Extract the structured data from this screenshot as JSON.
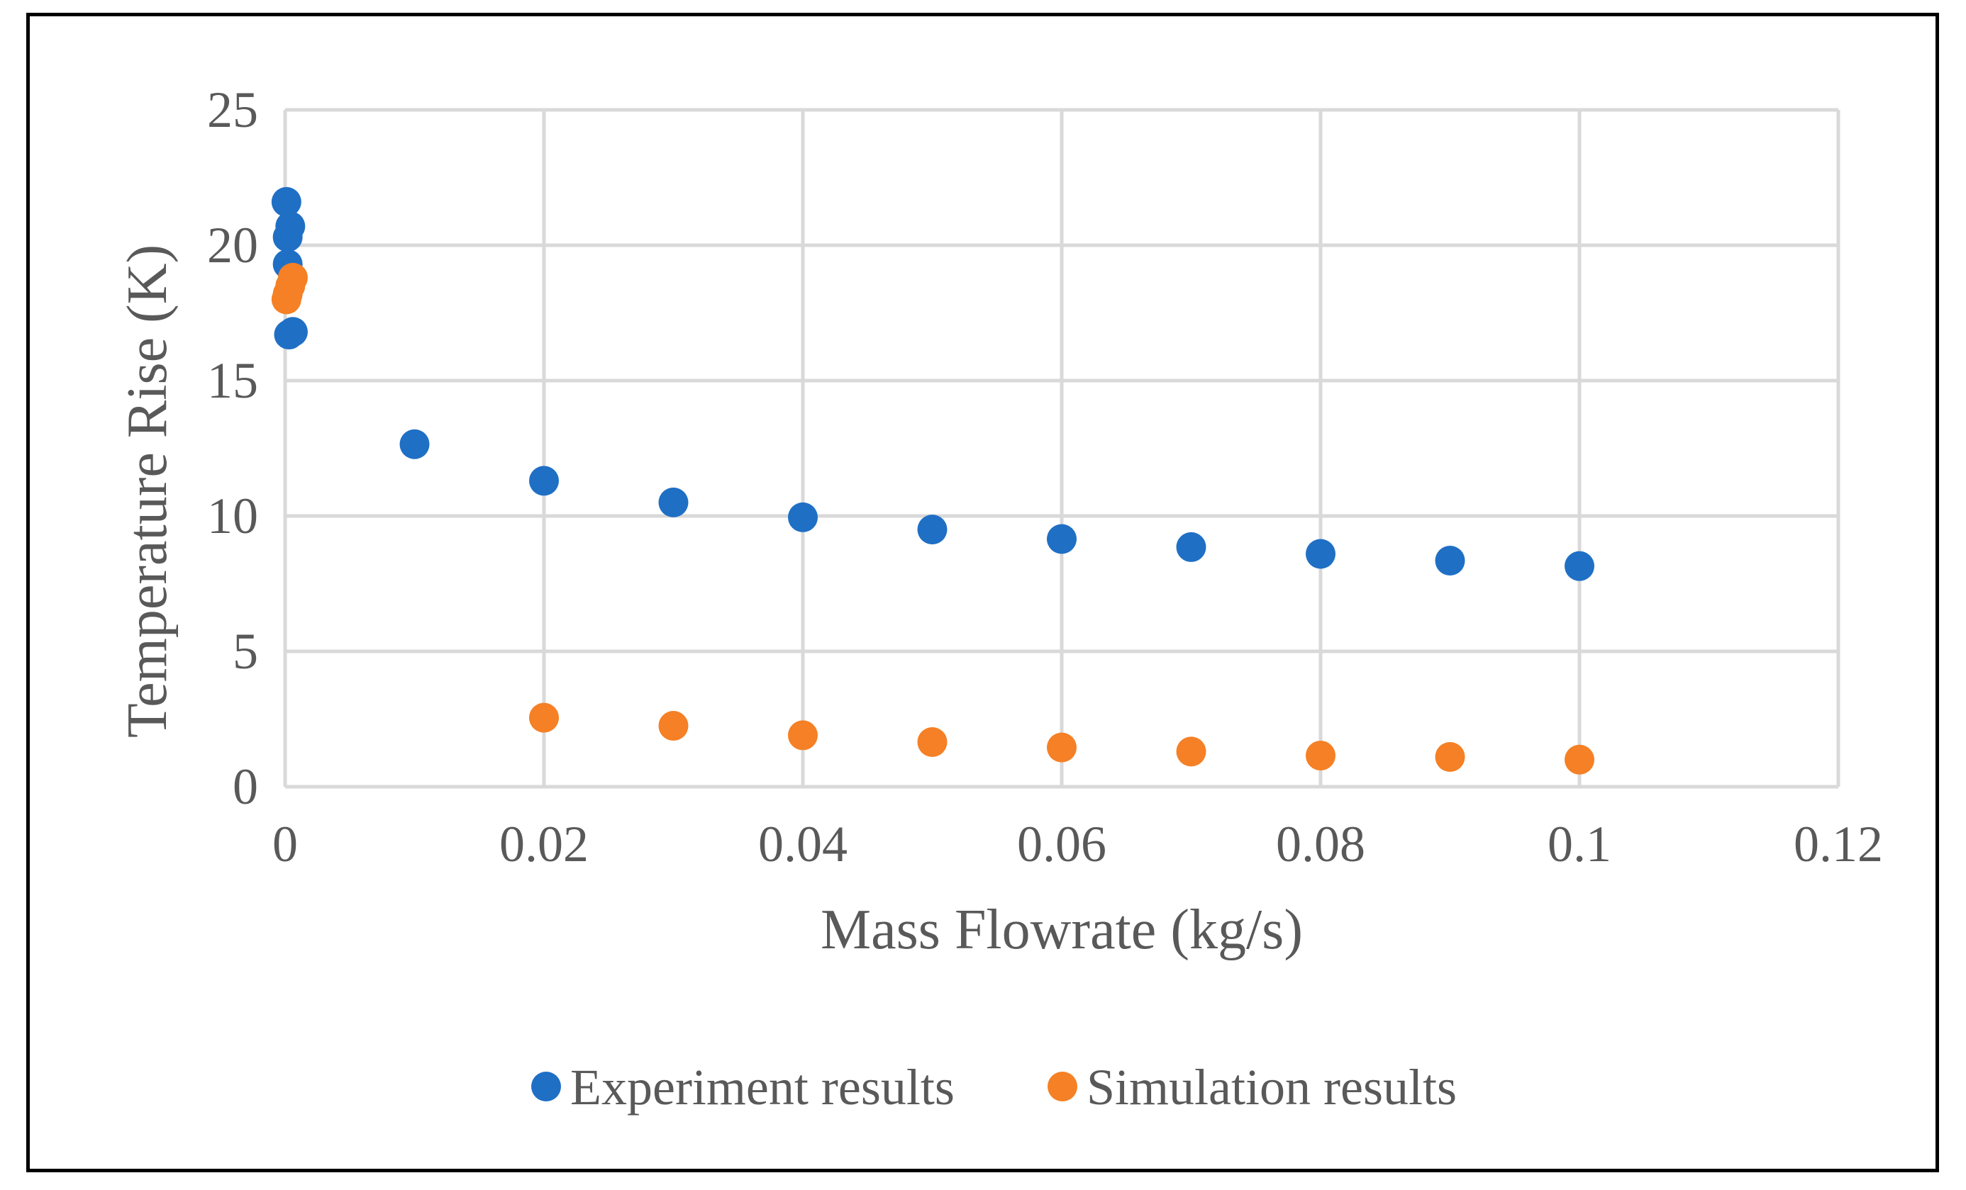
{
  "chart_data": {
    "type": "scatter",
    "title": "",
    "xlabel": "Mass Flowrate (kg/s)",
    "ylabel": "Temperature Rise (K)",
    "xlim": [
      0,
      0.12
    ],
    "ylim": [
      0,
      25
    ],
    "x_ticks": [
      0,
      0.02,
      0.04,
      0.06,
      0.08,
      0.1,
      0.12
    ],
    "x_tick_labels": [
      "0",
      "0.02",
      "0.04",
      "0.06",
      "0.08",
      "0.1",
      "0.12"
    ],
    "y_ticks": [
      0,
      5,
      10,
      15,
      20,
      25
    ],
    "y_tick_labels": [
      "0",
      "5",
      "10",
      "15",
      "20",
      "25"
    ],
    "grid": true,
    "legend_position": "bottom",
    "series": [
      {
        "name": "Experiment results",
        "color": "#1f6fc5",
        "points": [
          {
            "x": 0.0001,
            "y": 21.6
          },
          {
            "x": 0.0004,
            "y": 20.7
          },
          {
            "x": 0.0002,
            "y": 20.3
          },
          {
            "x": 0.0002,
            "y": 19.3
          },
          {
            "x": 0.0006,
            "y": 16.8
          },
          {
            "x": 0.0003,
            "y": 16.7
          },
          {
            "x": 0.01,
            "y": 12.65
          },
          {
            "x": 0.02,
            "y": 11.3
          },
          {
            "x": 0.03,
            "y": 10.5
          },
          {
            "x": 0.04,
            "y": 9.95
          },
          {
            "x": 0.05,
            "y": 9.5
          },
          {
            "x": 0.06,
            "y": 9.15
          },
          {
            "x": 0.07,
            "y": 8.85
          },
          {
            "x": 0.08,
            "y": 8.6
          },
          {
            "x": 0.09,
            "y": 8.35
          },
          {
            "x": 0.1,
            "y": 8.15
          }
        ]
      },
      {
        "name": "Simulation results",
        "color": "#f58025",
        "points": [
          {
            "x": 0.0006,
            "y": 18.8
          },
          {
            "x": 0.0004,
            "y": 18.5
          },
          {
            "x": 0.0002,
            "y": 18.2
          },
          {
            "x": 0.0001,
            "y": 18.0
          },
          {
            "x": 0.02,
            "y": 2.55
          },
          {
            "x": 0.03,
            "y": 2.25
          },
          {
            "x": 0.04,
            "y": 1.9
          },
          {
            "x": 0.05,
            "y": 1.65
          },
          {
            "x": 0.06,
            "y": 1.45
          },
          {
            "x": 0.07,
            "y": 1.3
          },
          {
            "x": 0.08,
            "y": 1.15
          },
          {
            "x": 0.09,
            "y": 1.1
          },
          {
            "x": 0.1,
            "y": 1.0
          }
        ]
      }
    ]
  }
}
